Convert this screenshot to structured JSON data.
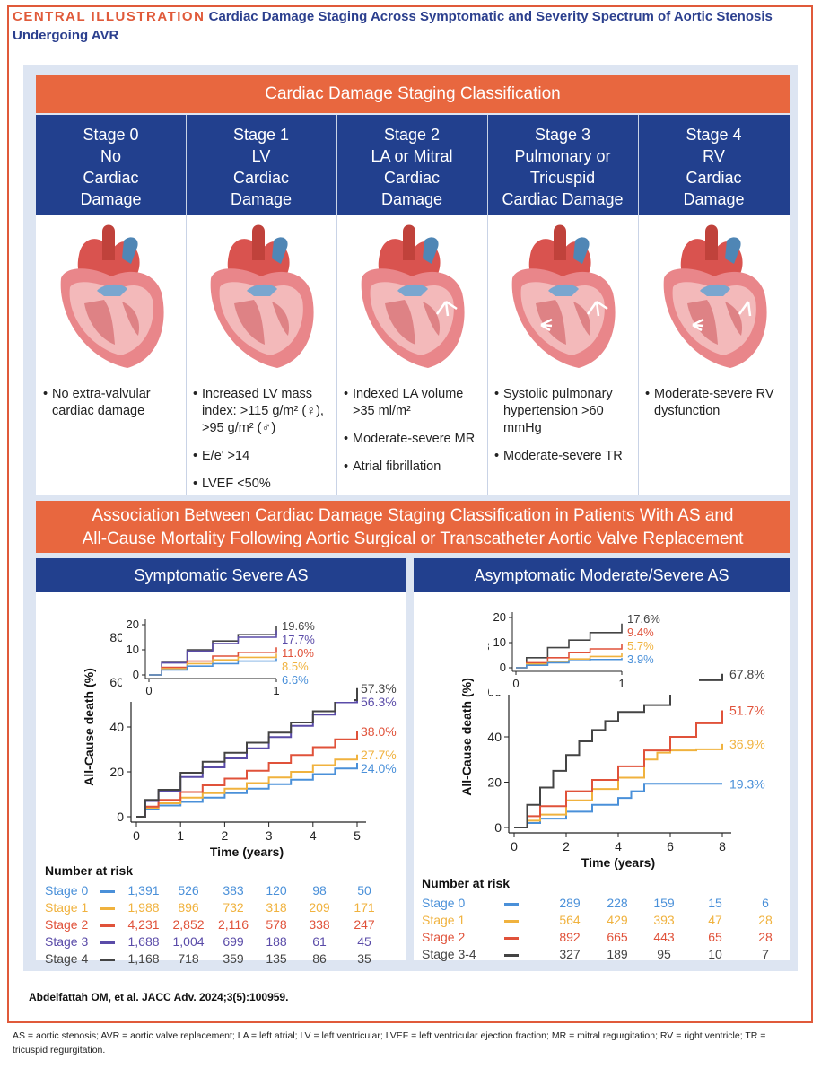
{
  "header": {
    "label": "CENTRAL ILLUSTRATION",
    "title": "Cardiac Damage Staging Across Symptomatic and Severity Spectrum of Aortic Stenosis Undergoing AVR"
  },
  "classification": {
    "title": "Cardiac Damage Staging Classification",
    "stages": [
      {
        "name": "Stage 0",
        "desc": [
          "No",
          "Cardiac",
          "Damage"
        ],
        "bullets": [
          "No extra-valvular cardiac damage"
        ]
      },
      {
        "name": "Stage 1",
        "desc": [
          "LV",
          "Cardiac",
          "Damage"
        ],
        "bullets": [
          "Increased LV mass index: >115 g/m² (♀), >95 g/m² (♂)",
          "E/e' >14",
          "LVEF <50%"
        ]
      },
      {
        "name": "Stage 2",
        "desc": [
          "LA or Mitral",
          "Cardiac",
          "Damage"
        ],
        "bullets": [
          "Indexed LA volume >35 ml/m²",
          "Moderate-severe MR",
          "Atrial fibrillation"
        ]
      },
      {
        "name": "Stage 3",
        "desc": [
          "Pulmonary or",
          "Tricuspid",
          "Cardiac Damage"
        ],
        "bullets": [
          "Systolic pulmonary hypertension >60 mmHg",
          "Moderate-severe TR"
        ]
      },
      {
        "name": "Stage 4",
        "desc": [
          "RV",
          "Cardiac",
          "Damage"
        ],
        "bullets": [
          "Moderate-severe RV dysfunction"
        ]
      }
    ]
  },
  "association": {
    "title_line1": "Association Between Cardiac Damage Staging Classification in Patients With AS and",
    "title_line2": "All-Cause Mortality Following Aortic Surgical or Transcatheter Aortic Valve Replacement"
  },
  "colors": {
    "stage0": "#4a90d9",
    "stage1": "#f0b23e",
    "stage2": "#e0523a",
    "stage3": "#5a4ba8",
    "stage4": "#444444",
    "navy": "#22408e",
    "orange": "#e8673f"
  },
  "chart_data": [
    {
      "type": "line",
      "title": "Symptomatic Severe AS",
      "xlabel": "Time (years)",
      "ylabel": "All-Cause death (%)",
      "xlim": [
        0,
        5
      ],
      "ylim": [
        0,
        80
      ],
      "xticks": [
        0,
        1,
        2,
        3,
        4,
        5
      ],
      "yticks": [
        0,
        20,
        40,
        60,
        80
      ],
      "series": [
        {
          "name": "Stage 0",
          "color": "#4a90d9",
          "end_label": "24.0%",
          "x": [
            0,
            0.2,
            0.5,
            1,
            1.5,
            2,
            2.5,
            3,
            3.5,
            4,
            4.5,
            5
          ],
          "y": [
            0,
            3.5,
            5,
            6.6,
            8.5,
            10.5,
            12.5,
            14.5,
            16.5,
            19,
            21.5,
            24.0
          ]
        },
        {
          "name": "Stage 1",
          "color": "#f0b23e",
          "end_label": "27.7%",
          "x": [
            0,
            0.2,
            0.5,
            1,
            1.5,
            2,
            2.5,
            3,
            3.5,
            4,
            4.5,
            5
          ],
          "y": [
            0,
            4,
            6,
            8.5,
            10.5,
            12.5,
            15,
            17.5,
            20,
            23,
            25.5,
            27.7
          ]
        },
        {
          "name": "Stage 2",
          "color": "#e0523a",
          "end_label": "38.0%",
          "x": [
            0,
            0.2,
            0.5,
            1,
            1.5,
            2,
            2.5,
            3,
            3.5,
            4,
            4.5,
            5
          ],
          "y": [
            0,
            4.5,
            7.5,
            11.0,
            14,
            17,
            20.5,
            24,
            27.5,
            31,
            34.5,
            38.0
          ]
        },
        {
          "name": "Stage 3",
          "color": "#5a4ba8",
          "end_label": "56.3%",
          "x": [
            0,
            0.2,
            0.5,
            1,
            1.5,
            2,
            2.5,
            3,
            3.5,
            4,
            4.5,
            5
          ],
          "y": [
            0,
            7,
            11.5,
            17.7,
            22,
            26,
            30.5,
            35.5,
            40.5,
            45.5,
            51,
            56.3
          ]
        },
        {
          "name": "Stage 4",
          "color": "#444444",
          "end_label": "57.3%",
          "x": [
            0,
            0.2,
            0.5,
            1,
            1.5,
            2,
            2.5,
            3,
            3.5,
            4,
            4.5,
            5
          ],
          "y": [
            0,
            7.5,
            12,
            19.6,
            24.5,
            28.5,
            33,
            37.5,
            42,
            47,
            52,
            57.3
          ]
        }
      ],
      "inset": {
        "xlim": [
          0,
          1
        ],
        "ylim": [
          0,
          20
        ],
        "xticks": [
          0,
          1
        ],
        "yticks": [
          0,
          10,
          20
        ],
        "series": [
          {
            "name": "Stage 4",
            "color": "#444444",
            "end_label": "19.6%",
            "x": [
              0,
              0.1,
              0.3,
              0.5,
              0.7,
              1
            ],
            "y": [
              0,
              5,
              10,
              13.5,
              16,
              19.6
            ]
          },
          {
            "name": "Stage 3",
            "color": "#5a4ba8",
            "end_label": "17.7%",
            "x": [
              0,
              0.1,
              0.3,
              0.5,
              0.7,
              1
            ],
            "y": [
              0,
              4.8,
              9.5,
              12.5,
              15,
              17.7
            ]
          },
          {
            "name": "Stage 2",
            "color": "#e0523a",
            "end_label": "11.0%",
            "x": [
              0,
              0.1,
              0.3,
              0.5,
              0.7,
              1
            ],
            "y": [
              0,
              3,
              5.5,
              7.5,
              9,
              11.0
            ]
          },
          {
            "name": "Stage 1",
            "color": "#f0b23e",
            "end_label": "8.5%",
            "x": [
              0,
              0.1,
              0.3,
              0.5,
              0.7,
              1
            ],
            "y": [
              0,
              2.5,
              4.5,
              6,
              7,
              8.5
            ]
          },
          {
            "name": "Stage 0",
            "color": "#4a90d9",
            "end_label": "6.6%",
            "x": [
              0,
              0.1,
              0.3,
              0.5,
              0.7,
              1
            ],
            "y": [
              0,
              2,
              3.5,
              4.5,
              5.5,
              6.6
            ]
          }
        ]
      },
      "risk_table": {
        "title": "Number at risk",
        "rows": [
          {
            "label": "Stage 0",
            "color": "#4a90d9",
            "values": [
              "1,391",
              "526",
              "383",
              "120",
              "98",
              "50"
            ]
          },
          {
            "label": "Stage 1",
            "color": "#f0b23e",
            "values": [
              "1,988",
              "896",
              "732",
              "318",
              "209",
              "171"
            ]
          },
          {
            "label": "Stage 2",
            "color": "#e0523a",
            "values": [
              "4,231",
              "2,852",
              "2,116",
              "578",
              "338",
              "247"
            ]
          },
          {
            "label": "Stage 3",
            "color": "#5a4ba8",
            "values": [
              "1,688",
              "1,004",
              "699",
              "188",
              "61",
              "45"
            ]
          },
          {
            "label": "Stage 4",
            "color": "#444444",
            "values": [
              "1,168",
              "718",
              "359",
              "135",
              "86",
              "35"
            ]
          }
        ]
      }
    },
    {
      "type": "line",
      "title": "Asymptomatic Moderate/Severe AS",
      "xlabel": "Time (years)",
      "ylabel": "All-Cause death (%)",
      "xlim": [
        0,
        8
      ],
      "ylim": [
        0,
        80
      ],
      "xticks": [
        0,
        2,
        4,
        6,
        8
      ],
      "yticks": [
        0,
        20,
        40,
        60,
        80
      ],
      "series": [
        {
          "name": "Stage 0",
          "color": "#4a90d9",
          "end_label": "19.3%",
          "x": [
            0,
            0.5,
            1,
            2,
            3,
            4,
            4.5,
            5,
            6,
            7,
            8
          ],
          "y": [
            0,
            2,
            3.9,
            7,
            10,
            13,
            16,
            19.3,
            19.3,
            19.3,
            19.3
          ]
        },
        {
          "name": "Stage 1",
          "color": "#f0b23e",
          "end_label": "36.9%",
          "x": [
            0,
            0.5,
            1,
            2,
            3,
            4,
            5,
            5.5,
            6,
            7,
            8
          ],
          "y": [
            0,
            3,
            5.7,
            12,
            17,
            22,
            30,
            33,
            34,
            34.5,
            36.9
          ]
        },
        {
          "name": "Stage 2",
          "color": "#e0523a",
          "end_label": "51.7%",
          "x": [
            0,
            0.5,
            1,
            2,
            3,
            4,
            5,
            6,
            7,
            8
          ],
          "y": [
            0,
            5,
            9.4,
            16,
            21,
            27,
            34,
            40,
            46,
            51.7
          ]
        },
        {
          "name": "Stage 3-4",
          "color": "#444444",
          "end_label": "67.8%",
          "x": [
            0,
            0.5,
            1,
            1.5,
            2,
            2.5,
            3,
            3.5,
            4,
            5,
            6,
            6.5,
            7,
            8
          ],
          "y": [
            0,
            10,
            17.6,
            25,
            32,
            38,
            43,
            47,
            51,
            54,
            60,
            62,
            65,
            67.8
          ]
        }
      ],
      "inset": {
        "xlim": [
          0,
          1
        ],
        "ylim": [
          0,
          20
        ],
        "xticks": [
          0,
          1
        ],
        "yticks": [
          0,
          10,
          20
        ],
        "series": [
          {
            "name": "Stage 3-4",
            "color": "#444444",
            "end_label": "17.6%",
            "x": [
              0,
              0.1,
              0.3,
              0.5,
              0.7,
              1
            ],
            "y": [
              0,
              4,
              8,
              11,
              14,
              17.6
            ]
          },
          {
            "name": "Stage 2",
            "color": "#e0523a",
            "end_label": "9.4%",
            "x": [
              0,
              0.1,
              0.3,
              0.5,
              0.7,
              1
            ],
            "y": [
              0,
              2,
              4,
              6,
              7.5,
              9.4
            ]
          },
          {
            "name": "Stage 1",
            "color": "#f0b23e",
            "end_label": "5.7%",
            "x": [
              0,
              0.1,
              0.3,
              0.5,
              0.7,
              1
            ],
            "y": [
              0,
              1.5,
              2.5,
              3.5,
              4.5,
              5.7
            ]
          },
          {
            "name": "Stage 0",
            "color": "#4a90d9",
            "end_label": "3.9%",
            "x": [
              0,
              0.1,
              0.3,
              0.5,
              0.7,
              1
            ],
            "y": [
              0,
              1,
              2,
              2.8,
              3.3,
              3.9
            ]
          }
        ]
      },
      "risk_table": {
        "title": "Number at risk",
        "rows": [
          {
            "label": "Stage 0",
            "color": "#4a90d9",
            "values": [
              "289",
              "228",
              "159",
              "15",
              "6"
            ]
          },
          {
            "label": "Stage 1",
            "color": "#f0b23e",
            "values": [
              "564",
              "429",
              "393",
              "47",
              "28"
            ]
          },
          {
            "label": "Stage 2",
            "color": "#e0523a",
            "values": [
              "892",
              "665",
              "443",
              "65",
              "28"
            ]
          },
          {
            "label": "Stage 3-4",
            "color": "#444444",
            "values": [
              "327",
              "189",
              "95",
              "10",
              "7"
            ]
          }
        ]
      }
    }
  ],
  "citation": "Abdelfattah OM, et al. JACC Adv. 2024;3(5):100959.",
  "footnote": "AS = aortic stenosis; AVR = aortic valve replacement; LA = left atrial; LV = left ventricular; LVEF = left ventricular ejection fraction; MR = mitral regurgitation; RV = right ventricle; TR = tricuspid regurgitation."
}
